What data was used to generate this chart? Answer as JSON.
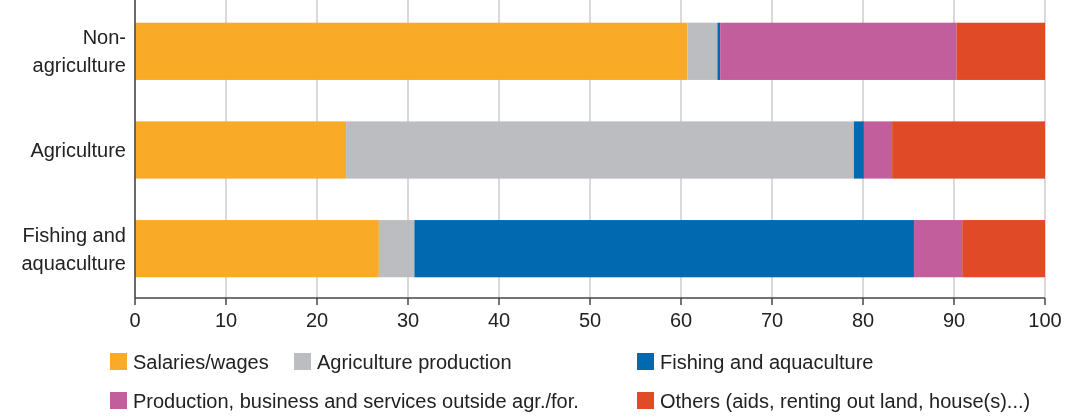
{
  "chart_data": {
    "type": "bar",
    "orientation": "horizontal",
    "stacked": true,
    "categories": [
      "Non-agriculture",
      "Agriculture",
      "Fishing and aquaculture"
    ],
    "series": [
      {
        "name": "Salaries/wages",
        "color": "#f9ab28",
        "values": [
          60.7,
          23.2,
          26.8
        ]
      },
      {
        "name": "Agriculture production",
        "color": "#bcbdc1",
        "values": [
          3.3,
          55.8,
          3.9
        ]
      },
      {
        "name": "Fishing and aquaculture",
        "color": "#0069b0",
        "values": [
          0.3,
          1.1,
          54.9
        ]
      },
      {
        "name": "Production, business and services outside agr./for.",
        "color": "#c25e9c",
        "values": [
          26.0,
          3.1,
          5.3
        ]
      },
      {
        "name": "Others (aids, renting out land, house(s)...)",
        "color": "#e04a27",
        "values": [
          9.7,
          16.8,
          9.1
        ]
      }
    ],
    "xlim": [
      0,
      100
    ],
    "xticks": [
      0,
      10,
      20,
      30,
      40,
      50,
      60,
      70,
      80,
      90,
      100
    ],
    "grid": "x",
    "legend": "bottom"
  }
}
